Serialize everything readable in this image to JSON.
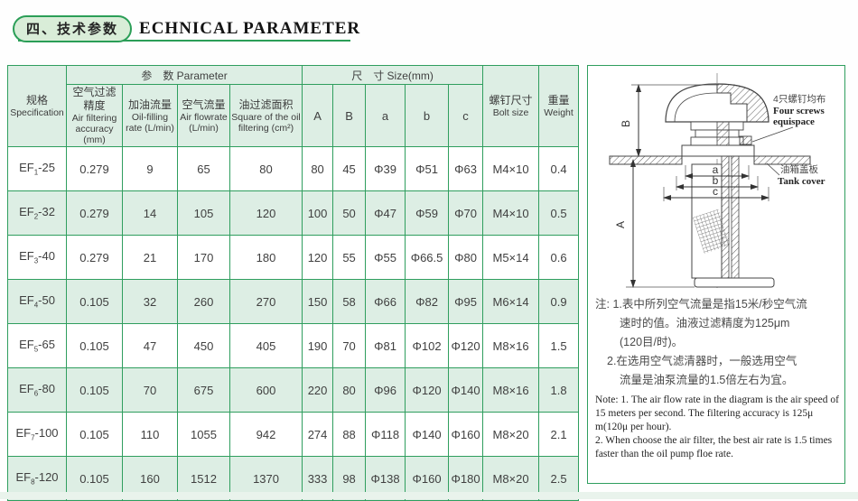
{
  "page": {
    "title_cn": "四、技术参数",
    "title_en": "ECHNICAL PARAMETER"
  },
  "table": {
    "headers": {
      "spec_cn": "规格",
      "spec_en": "Specification",
      "param_group": "参　数 Parameter",
      "size_group": "尺　寸 Size(mm)",
      "param_cols": [
        {
          "cn": "空气过滤精度",
          "en": "Air filtering accuracy (mm)"
        },
        {
          "cn": "加油流量",
          "en": "Oil-filling rate (L/min)"
        },
        {
          "cn": "空气流量",
          "en": "Air flowrate (L/min)"
        },
        {
          "cn": "油过滤面积",
          "en": "Square of the oil filtering (cm²)"
        }
      ],
      "size_cols": [
        "A",
        "B",
        "a",
        "b",
        "c"
      ],
      "bolt_cn": "螺钉尺寸",
      "bolt_en": "Bolt size",
      "weight_cn": "重量",
      "weight_en": "Weight"
    },
    "rows": [
      {
        "spec_prefix": "EF",
        "spec_sub": "1",
        "spec_suffix": "-25",
        "values": [
          "0.279",
          "9",
          "65",
          "80",
          "80",
          "45",
          "Φ39",
          "Φ51",
          "Φ63",
          "M4×10",
          "0.4"
        ]
      },
      {
        "spec_prefix": "EF",
        "spec_sub": "2",
        "spec_suffix": "-32",
        "values": [
          "0.279",
          "14",
          "105",
          "120",
          "100",
          "50",
          "Φ47",
          "Φ59",
          "Φ70",
          "M4×10",
          "0.5"
        ]
      },
      {
        "spec_prefix": "EF",
        "spec_sub": "3",
        "spec_suffix": "-40",
        "values": [
          "0.279",
          "21",
          "170",
          "180",
          "120",
          "55",
          "Φ55",
          "Φ66.5",
          "Φ80",
          "M5×14",
          "0.6"
        ]
      },
      {
        "spec_prefix": "EF",
        "spec_sub": "4",
        "spec_suffix": "-50",
        "values": [
          "0.105",
          "32",
          "260",
          "270",
          "150",
          "58",
          "Φ66",
          "Φ82",
          "Φ95",
          "M6×14",
          "0.9"
        ]
      },
      {
        "spec_prefix": "EF",
        "spec_sub": "5",
        "spec_suffix": "-65",
        "values": [
          "0.105",
          "47",
          "450",
          "405",
          "190",
          "70",
          "Φ81",
          "Φ102",
          "Φ120",
          "M8×16",
          "1.5"
        ]
      },
      {
        "spec_prefix": "EF",
        "spec_sub": "6",
        "spec_suffix": "-80",
        "values": [
          "0.105",
          "70",
          "675",
          "600",
          "220",
          "80",
          "Φ96",
          "Φ120",
          "Φ140",
          "M8×16",
          "1.8"
        ]
      },
      {
        "spec_prefix": "EF",
        "spec_sub": "7",
        "spec_suffix": "-100",
        "values": [
          "0.105",
          "110",
          "1055",
          "942",
          "274",
          "88",
          "Φ118",
          "Φ140",
          "Φ160",
          "M8×20",
          "2.1"
        ]
      },
      {
        "spec_prefix": "EF",
        "spec_sub": "8",
        "spec_suffix": "-120",
        "values": [
          "0.105",
          "160",
          "1512",
          "1370",
          "333",
          "98",
          "Φ138",
          "Φ160",
          "Φ180",
          "M8×20",
          "2.5"
        ]
      }
    ]
  },
  "diagram": {
    "dims": {
      "A": "A",
      "B": "B",
      "a": "a",
      "b": "b",
      "c": "c"
    },
    "screws_label_cn": "4只螺钉均布",
    "screws_label_en1": "Four screws",
    "screws_label_en2": "equispace",
    "cover_label_cn": "油箱盖板",
    "cover_label_en": "Tank cover"
  },
  "notes": {
    "cn_lines": [
      "注: 1.表中所列空气流量是指15米/秒空气流",
      "速时的值。油液过滤精度为125μm",
      "(120目/时)。",
      "2.在选用空气滤清器时，一般选用空气",
      "流量是油泵流量的1.5倍左右为宜。"
    ],
    "en_lines": [
      "Note: 1. The air flow rate in the diagram is the air speed of",
      "15 meters per second. The filtering accuracy is 125μ",
      "m(120μ per hour).",
      "2. When choose the air filter, the best air rate is 1.5 times",
      "faster than the oil pump floe rate."
    ]
  }
}
